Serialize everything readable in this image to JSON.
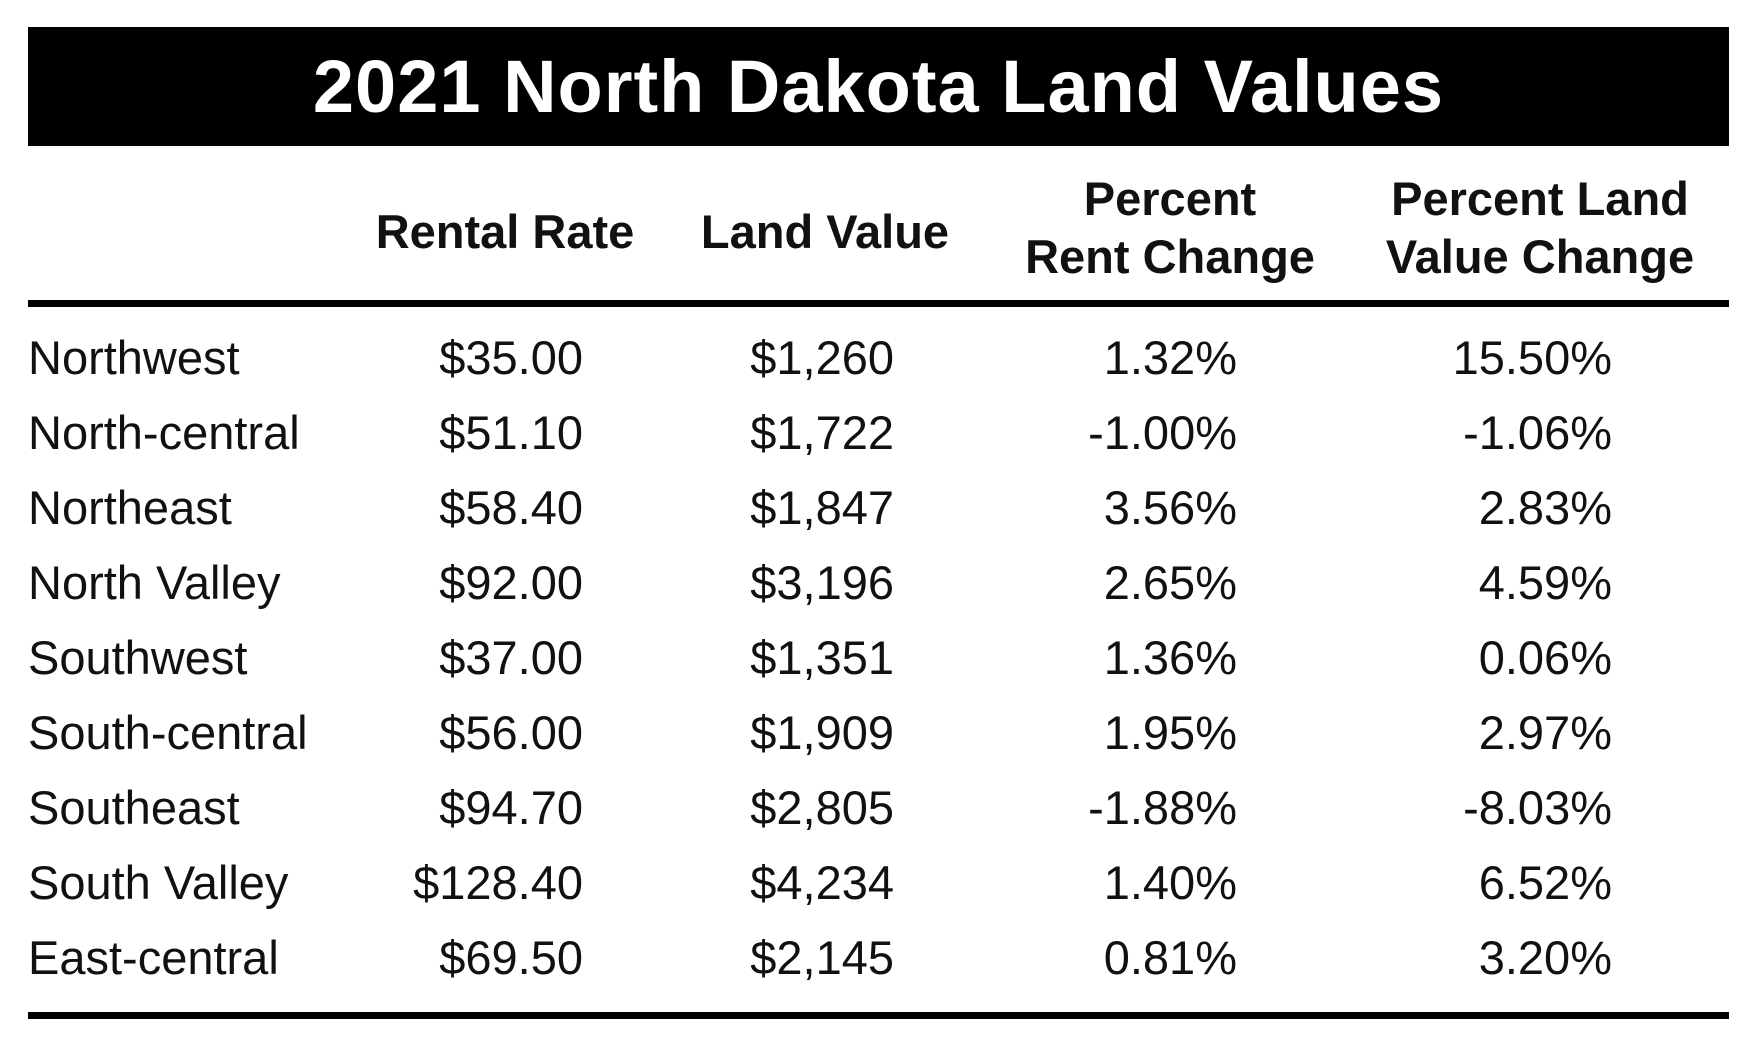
{
  "chart_data": {
    "type": "table",
    "title": "2021 North Dakota Land Values",
    "columns": [
      {
        "line1": "",
        "line2": ""
      },
      {
        "line1": "",
        "line2": "Rental Rate"
      },
      {
        "line1": "",
        "line2": "Land Value"
      },
      {
        "line1": "Percent",
        "line2": "Rent Change"
      },
      {
        "line1": "Percent Land",
        "line2": "Value Change"
      }
    ],
    "rows": [
      {
        "region": "Northwest",
        "rental_rate": "$35.00",
        "land_value": "$1,260",
        "percent_rent_change": "1.32%",
        "percent_land_value_change": "15.50%"
      },
      {
        "region": "North-central",
        "rental_rate": "$51.10",
        "land_value": "$1,722",
        "percent_rent_change": "-1.00%",
        "percent_land_value_change": "-1.06%"
      },
      {
        "region": "Northeast",
        "rental_rate": "$58.40",
        "land_value": "$1,847",
        "percent_rent_change": "3.56%",
        "percent_land_value_change": "2.83%"
      },
      {
        "region": "North Valley",
        "rental_rate": "$92.00",
        "land_value": "$3,196",
        "percent_rent_change": "2.65%",
        "percent_land_value_change": "4.59%"
      },
      {
        "region": "Southwest",
        "rental_rate": "$37.00",
        "land_value": "$1,351",
        "percent_rent_change": "1.36%",
        "percent_land_value_change": "0.06%"
      },
      {
        "region": "South-central",
        "rental_rate": "$56.00",
        "land_value": "$1,909",
        "percent_rent_change": "1.95%",
        "percent_land_value_change": "2.97%"
      },
      {
        "region": "Southeast",
        "rental_rate": "$94.70",
        "land_value": "$2,805",
        "percent_rent_change": "-1.88%",
        "percent_land_value_change": "-8.03%"
      },
      {
        "region": "South Valley",
        "rental_rate": "$128.40",
        "land_value": "$4,234",
        "percent_rent_change": "1.40%",
        "percent_land_value_change": "6.52%"
      },
      {
        "region": "East-central",
        "rental_rate": "$69.50",
        "land_value": "$2,145",
        "percent_rent_change": "0.81%",
        "percent_land_value_change": "3.20%"
      }
    ]
  }
}
